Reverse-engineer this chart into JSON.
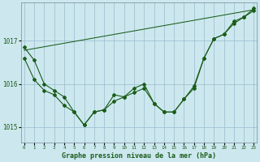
{
  "xlabel": "Graphe pression niveau de la mer (hPa)",
  "bg_color": "#cce8ee",
  "line_color": "#1a5c1a",
  "grid_color": "#99bbcc",
  "x_hours": [
    0,
    1,
    2,
    3,
    4,
    5,
    6,
    7,
    8,
    9,
    10,
    11,
    12,
    13,
    14,
    15,
    16,
    17,
    18,
    19,
    20,
    21,
    22,
    23
  ],
  "line1": [
    1016.85,
    1016.55,
    1016.0,
    1015.85,
    1015.7,
    1015.35,
    1015.05,
    1015.35,
    1015.4,
    1015.75,
    1015.7,
    1015.9,
    1016.0,
    1015.55,
    1015.35,
    1015.35,
    1015.65,
    1015.9,
    1016.6,
    1017.05,
    1017.15,
    1017.45,
    1017.55,
    1017.75
  ],
  "line2": [
    1016.6,
    1016.1,
    1015.85,
    1015.75,
    1015.5,
    1015.35,
    1015.05,
    1015.35,
    1015.4,
    1015.6,
    1015.7,
    1015.8,
    1015.9,
    1015.55,
    1015.35,
    1015.35,
    1015.65,
    1015.95,
    1016.6,
    1017.05,
    1017.15,
    1017.4,
    1017.55,
    1017.7
  ],
  "trend_x": [
    0,
    23
  ],
  "trend_y": [
    1016.78,
    1017.72
  ],
  "ylim_min": 1014.65,
  "ylim_max": 1017.88,
  "yticks": [
    1015,
    1016,
    1017
  ],
  "xlim_min": -0.3,
  "xlim_max": 23.3
}
